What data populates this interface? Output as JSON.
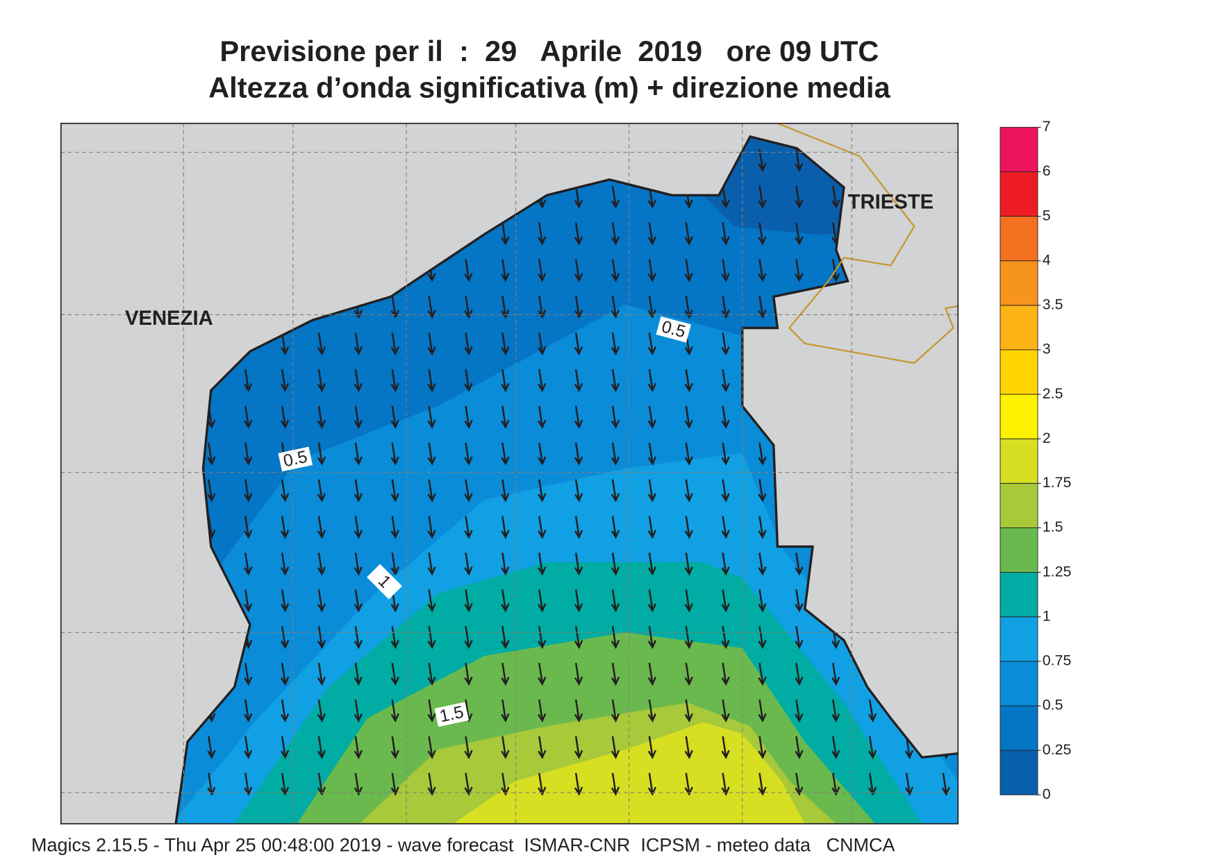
{
  "header": {
    "title": [
      "Previsione per il  :  29   Aprile  2019   ore 09 UTC",
      "Altezza d’onda significativa (m) + direzione media"
    ]
  },
  "map": {
    "places": [
      "VENEZIA",
      "TRIESTE"
    ],
    "contour_labels": [
      0.5,
      0.5,
      1,
      1.5
    ]
  },
  "colorbar": {
    "levels": [
      0,
      0.25,
      0.5,
      0.75,
      1,
      1.25,
      1.5,
      1.75,
      2,
      2.5,
      3,
      3.5,
      4,
      5,
      6,
      7
    ],
    "colors": [
      "#0a5fad",
      "#0575c5",
      "#0a8cd8",
      "#11a0e3",
      "#00aca4",
      "#6ab94e",
      "#a7c93a",
      "#d6df22",
      "#fff200",
      "#ffd400",
      "#fcb314",
      "#f7941d",
      "#f37121",
      "#ed1c24",
      "#ed145b"
    ]
  },
  "footer": "Magics 2.15.5 - Thu Apr 25 00:48:00 2019 - wave forecast  ISMAR-CNR  ICPSM - meteo data   CNMCA"
}
